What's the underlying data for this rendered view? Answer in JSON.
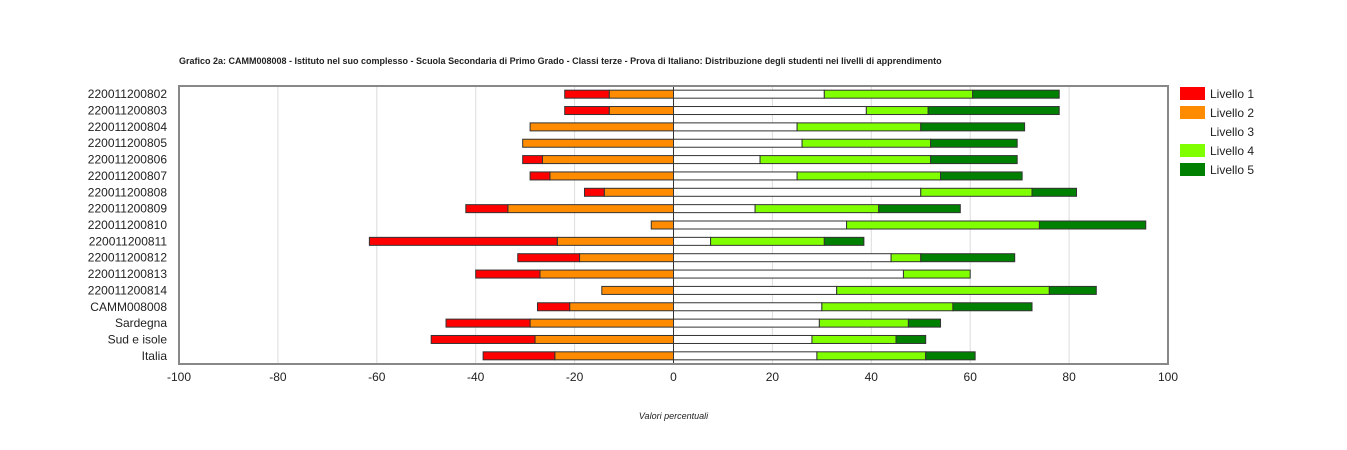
{
  "chart_data": {
    "type": "bar",
    "orientation": "horizontal-diverging-stacked",
    "title": "Grafico 2a: CAMM008008 - Istituto nel suo complesso - Scuola Secondaria di Primo Grado - Classi terze - Prova di Italiano: Distribuzione degli studenti nei livelli di apprendimento",
    "xlabel": "Valori percentuali",
    "xlim": [
      -100,
      100
    ],
    "xticks": [
      "-100",
      "-80",
      "-60",
      "-40",
      "-20",
      "0",
      "20",
      "40",
      "60",
      "80",
      "100"
    ],
    "grid": true,
    "legend_position": "right",
    "categories": [
      "220011200802",
      "220011200803",
      "220011200804",
      "220011200805",
      "220011200806",
      "220011200807",
      "220011200808",
      "220011200809",
      "220011200810",
      "220011200811",
      "220011200812",
      "220011200813",
      "220011200814",
      "CAMM008008",
      "Sardegna",
      "Sud e isole",
      "Italia"
    ],
    "series": [
      {
        "name": "Livello 1",
        "color": "#ff0000",
        "side": "negative",
        "values": [
          9,
          9,
          0,
          0,
          4,
          4,
          4,
          8.5,
          0,
          38,
          12.5,
          13,
          0,
          6.5,
          17,
          21,
          14.5
        ]
      },
      {
        "name": "Livello 2",
        "color": "#ff8c00",
        "side": "negative",
        "values": [
          13,
          13,
          29,
          30.5,
          26.5,
          25,
          14,
          33.5,
          4.5,
          23.5,
          19,
          27,
          14.5,
          21,
          29,
          28,
          24
        ]
      },
      {
        "name": "Livello 3",
        "color": "#ffffff",
        "side": "positive",
        "values": [
          30.5,
          39,
          25,
          26,
          17.5,
          25,
          50,
          16.5,
          35,
          7.5,
          44,
          46.5,
          33,
          30,
          29.5,
          28,
          29
        ]
      },
      {
        "name": "Livello 4",
        "color": "#7fff00",
        "side": "positive",
        "values": [
          30,
          12.5,
          25,
          26,
          34.5,
          29,
          22.5,
          25,
          39,
          23,
          6,
          13.5,
          43,
          26.5,
          18,
          17,
          22
        ]
      },
      {
        "name": "Livello 5",
        "color": "#008000",
        "side": "positive",
        "values": [
          17.5,
          26.5,
          21,
          17.5,
          17.5,
          16.5,
          9,
          16.5,
          21.5,
          8,
          19,
          0,
          9.5,
          16,
          6.5,
          6,
          10
        ]
      }
    ]
  }
}
